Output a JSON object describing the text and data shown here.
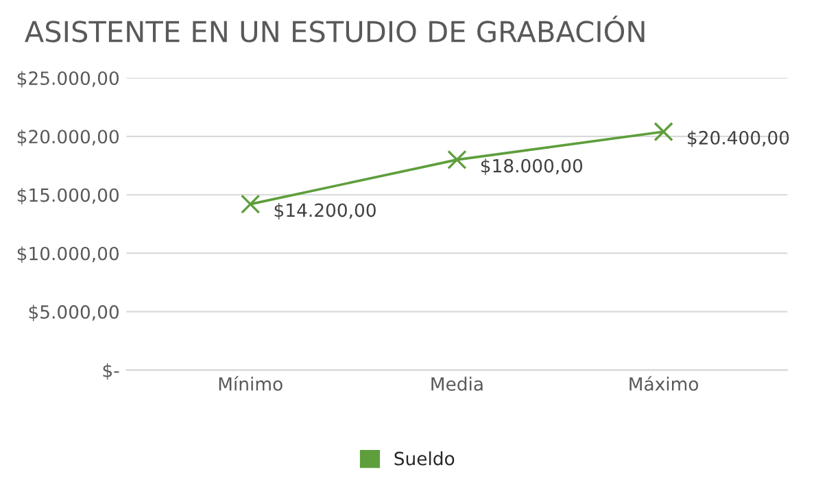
{
  "chart_data": {
    "type": "line",
    "title": "ASISTENTE EN UN ESTUDIO DE GRABACIÓN",
    "categories": [
      "Mínimo",
      "Media",
      "Máximo"
    ],
    "series": [
      {
        "name": "Sueldo",
        "color": "#5e9e3c",
        "values": [
          14200,
          18000,
          20400
        ],
        "value_labels": [
          "$14.200,00",
          "$18.000,00",
          "$20.400,00"
        ]
      }
    ],
    "ylim": [
      0,
      25000
    ],
    "yticks": [
      {
        "value": 0,
        "label": "$-"
      },
      {
        "value": 5000,
        "label": "$5.000,00"
      },
      {
        "value": 10000,
        "label": "$10.000,00"
      },
      {
        "value": 15000,
        "label": "$15.000,00"
      },
      {
        "value": 20000,
        "label": "$20.000,00"
      },
      {
        "value": 25000,
        "label": "$25.000,00"
      }
    ],
    "grid": "y",
    "legend": "bottom",
    "marker": "cross",
    "line_style": "solid"
  }
}
